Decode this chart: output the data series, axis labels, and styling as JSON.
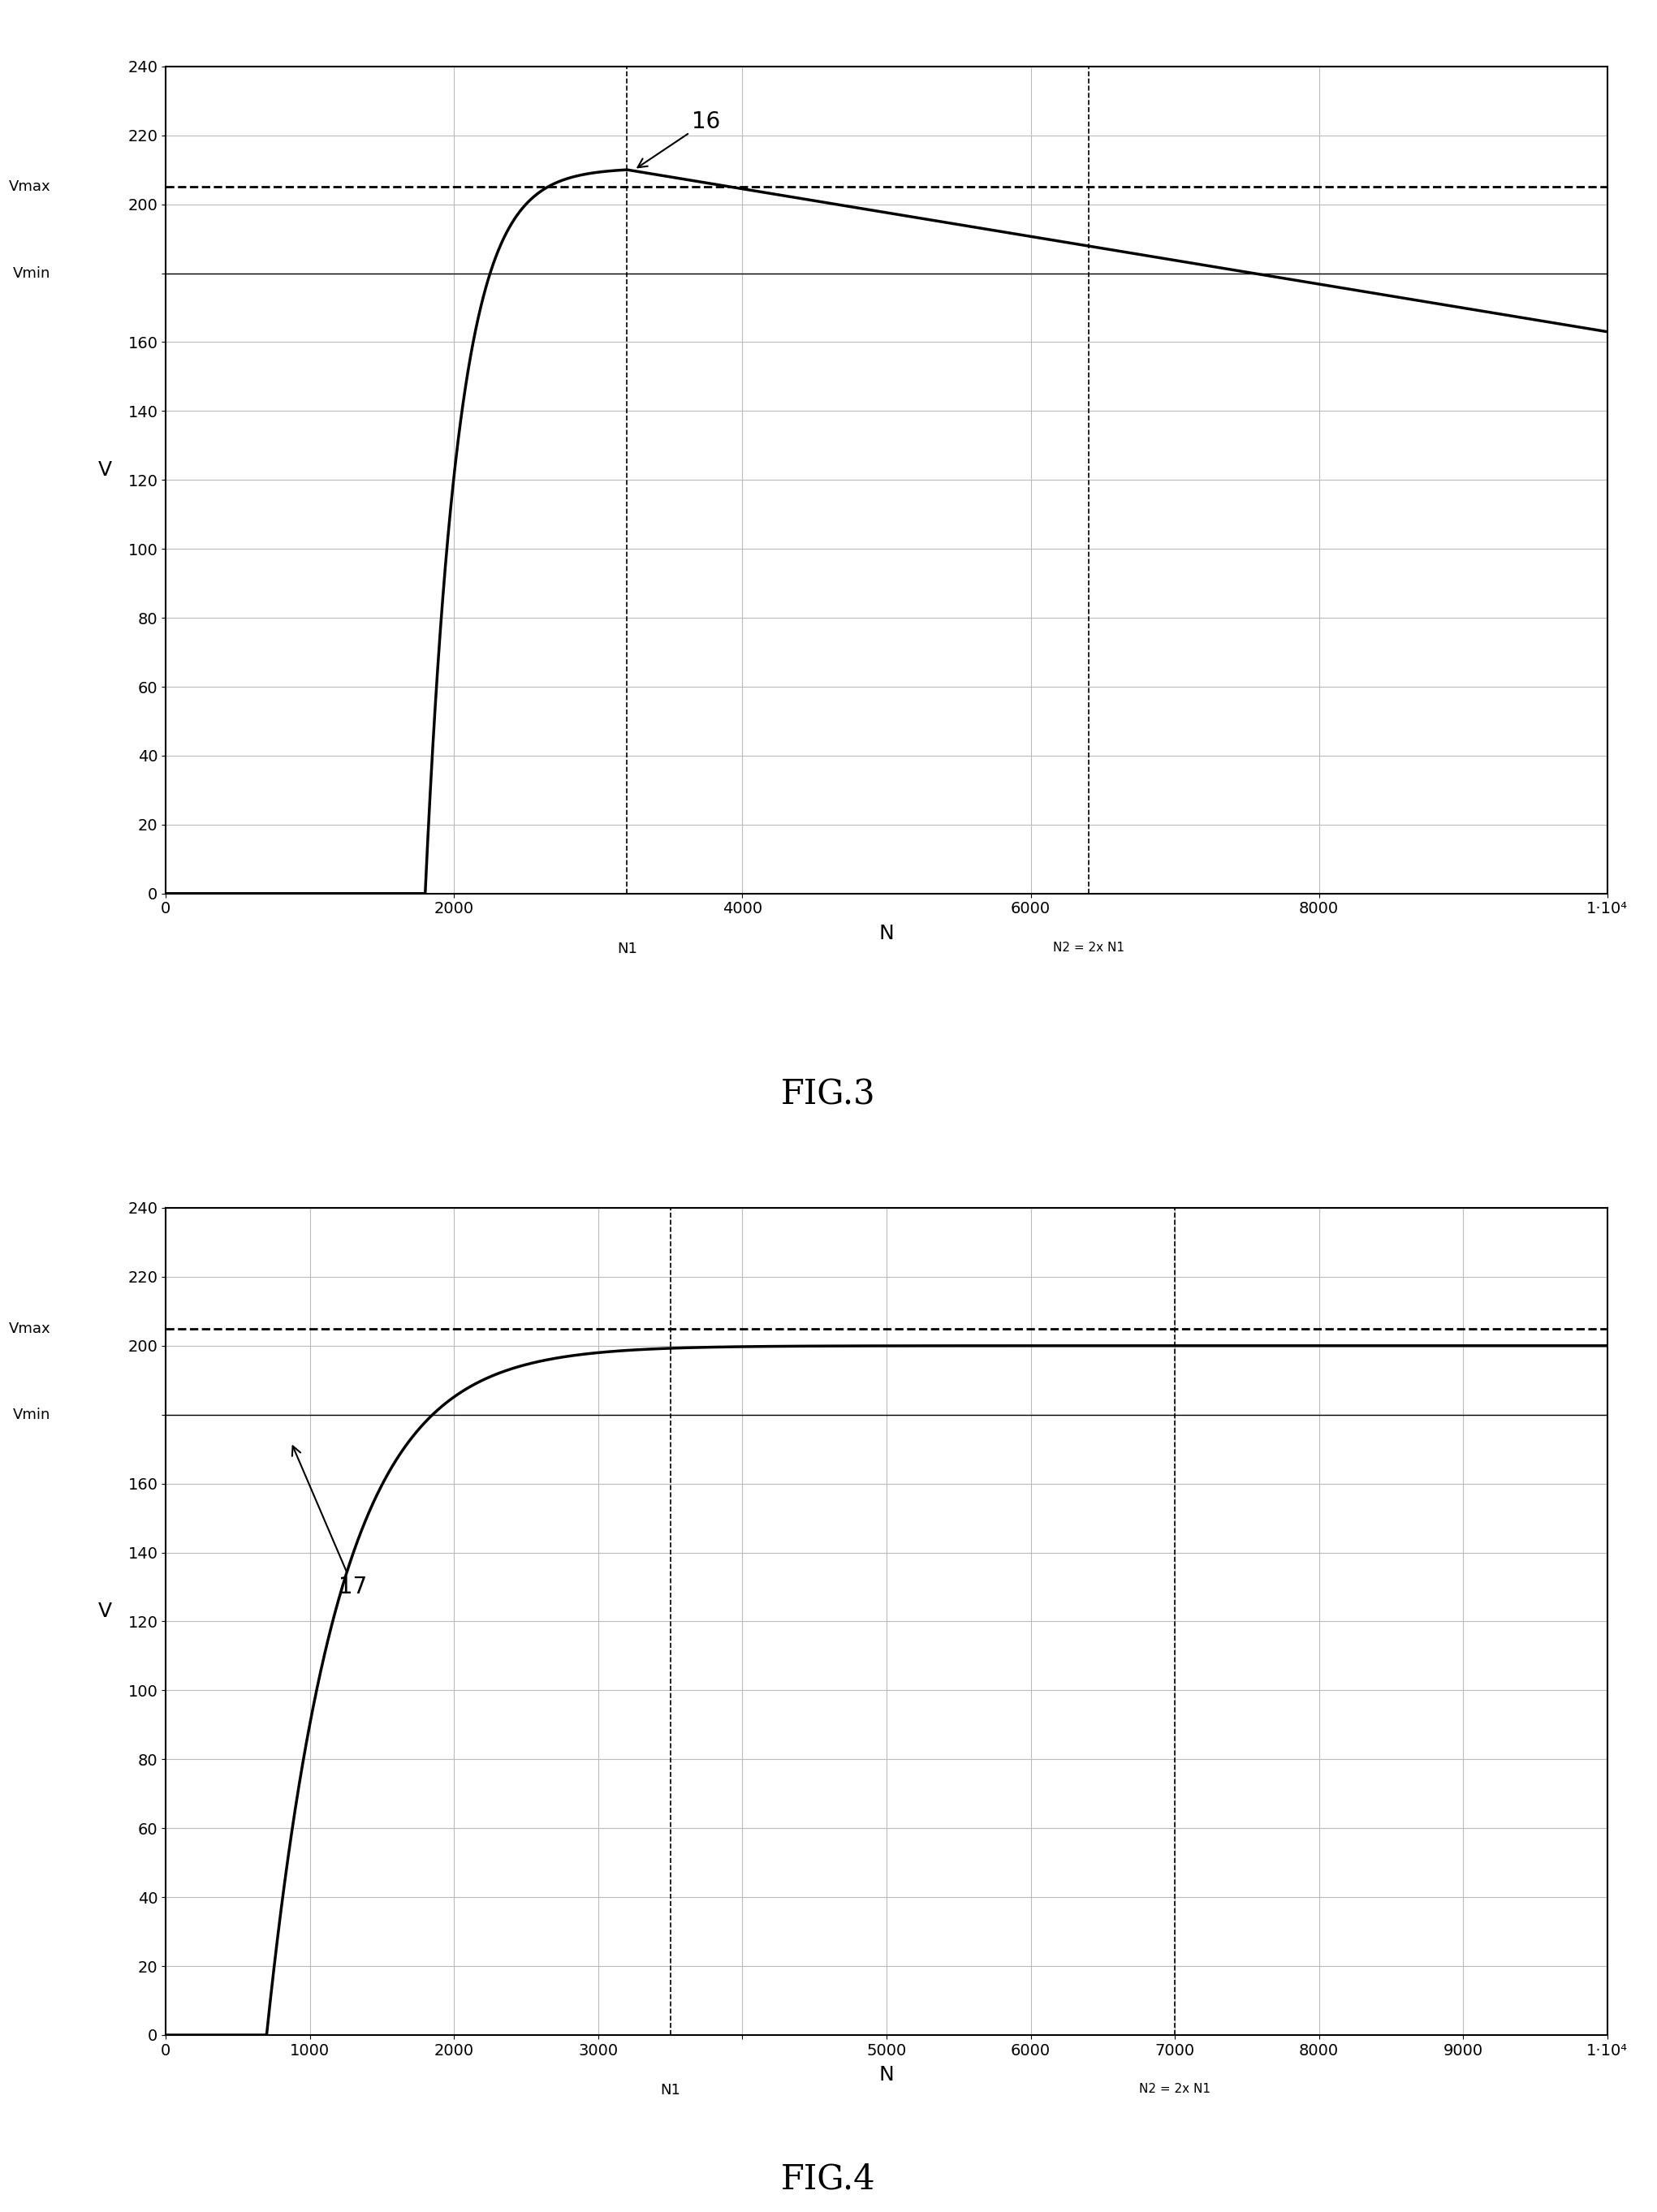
{
  "fig3": {
    "title": "FIG.3",
    "xlabel": "N",
    "ylabel": "V",
    "xlim": [
      0,
      10000
    ],
    "ylim": [
      0,
      240
    ],
    "yticks": [
      0,
      20,
      40,
      60,
      80,
      100,
      120,
      140,
      160,
      180,
      200,
      220,
      240
    ],
    "ytick_labels": [
      "0",
      "20",
      "40",
      "60",
      "80",
      "100",
      "120",
      "140",
      "160",
      "",
      "200",
      "220",
      "240"
    ],
    "xticks": [
      0,
      2000,
      4000,
      6000,
      8000,
      10000
    ],
    "xtick_labels": [
      "0",
      "2000",
      "4000",
      "6000",
      "8000",
      "1·10⁴"
    ],
    "vmax": 205,
    "vmin": 180,
    "vmax_label": "Vmax",
    "vmin_label": "Vmin",
    "N1": 3200,
    "N2": 6400,
    "N1_label": "N1",
    "N2_label": "N2 = 2x N1",
    "curve_label": "16",
    "peak_x": 3200,
    "peak_y": 210,
    "start_x": 1800,
    "end_y": 163
  },
  "fig4": {
    "title": "FIG.4",
    "xlabel": "N",
    "ylabel": "V",
    "xlim": [
      0,
      10000
    ],
    "ylim": [
      0,
      240
    ],
    "yticks": [
      0,
      20,
      40,
      60,
      80,
      100,
      120,
      140,
      160,
      180,
      200,
      220,
      240
    ],
    "ytick_labels": [
      "0",
      "20",
      "40",
      "60",
      "80",
      "100",
      "120",
      "140",
      "160",
      "",
      "200",
      "220",
      "240"
    ],
    "xticks": [
      0,
      1000,
      2000,
      3000,
      4000,
      5000,
      6000,
      7000,
      8000,
      9000,
      10000
    ],
    "xtick_labels": [
      "0",
      "1000",
      "2000",
      "3000",
      "",
      "5000",
      "6000",
      "7000",
      "8000",
      "9000",
      "1·10⁴"
    ],
    "vmax": 205,
    "vmin": 180,
    "vmax_label": "Vmax",
    "vmin_label": "Vmin",
    "N1": 3500,
    "N2": 7000,
    "N1_label": "N1",
    "N2_label": "N2 = 2x N1",
    "curve_label": "17",
    "start_x": 700,
    "Vss": 200,
    "tau": 500
  },
  "line_color": "black",
  "grid_color": "#bbbbbb",
  "bg_color": "white",
  "fig_label_fontsize": 30,
  "axis_label_fontsize": 18,
  "tick_label_fontsize": 14,
  "note_fontsize": 13,
  "curve_label_fontsize": 20
}
